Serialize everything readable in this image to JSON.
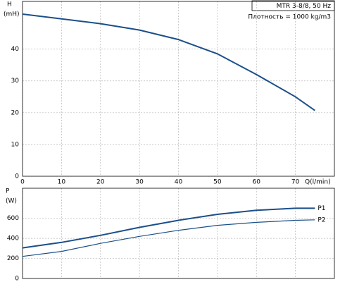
{
  "chart_data": [
    {
      "type": "line",
      "title": "MTR 3-8/8, 50 Hz",
      "subtitle": "Плотность = 1000 kg/m3",
      "ylabel": "H",
      "yunit": "(mH)",
      "xlabel": "Q(l/min)",
      "x": [
        0,
        10,
        20,
        30,
        40,
        50,
        60,
        70,
        75
      ],
      "series": [
        {
          "name": "H",
          "color": "#1b4f8a",
          "values": [
            51,
            49.5,
            48,
            46,
            43,
            38.5,
            32,
            25,
            20.7
          ]
        }
      ],
      "xlim": [
        0,
        80
      ],
      "xticks": [
        0,
        10,
        20,
        30,
        40,
        50,
        60,
        70
      ],
      "ylim": [
        0,
        55
      ],
      "yticks": [
        0,
        10,
        20,
        30,
        40
      ],
      "grid": true
    },
    {
      "type": "line",
      "ylabel": "P",
      "yunit": "(W)",
      "x": [
        0,
        10,
        20,
        30,
        40,
        50,
        60,
        70,
        75
      ],
      "series": [
        {
          "name": "P1",
          "color": "#1b4f8a",
          "values": [
            305,
            360,
            430,
            510,
            580,
            640,
            680,
            700,
            700
          ]
        },
        {
          "name": "P2",
          "color": "#1b4f8a",
          "values": [
            220,
            270,
            350,
            420,
            480,
            530,
            560,
            580,
            585
          ]
        }
      ],
      "xlim": [
        0,
        80
      ],
      "ylim": [
        0,
        900
      ],
      "yticks": [
        0,
        200,
        400,
        600
      ],
      "grid": true
    }
  ]
}
